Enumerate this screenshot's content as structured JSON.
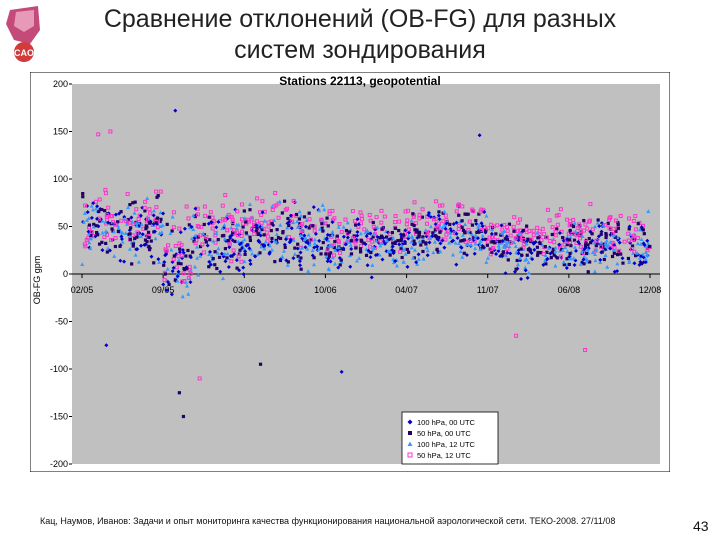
{
  "slide": {
    "title_line1": "Сравнение отклонений (OB-FG) для разных",
    "title_line2": "систем зондирования",
    "logo_text": "CAO",
    "footer": "Кац, Наумов, Иванов: Задачи и опыт мониторинга качества функционирования национальной аэрологической сети. ТЕКО-2008. 27/11/08",
    "page_number": "43"
  },
  "colors": {
    "plot_bg": "#c0c0c0",
    "series": [
      "#0000cc",
      "#220066",
      "#3399ff",
      "#ff33cc"
    ]
  },
  "chart_data": {
    "type": "scatter",
    "title": "Stations 22113, geopotential",
    "ylabel": "OB-FG gpm",
    "xlabel": "",
    "ylim": [
      -200,
      200
    ],
    "yticks": [
      200,
      150,
      100,
      50,
      0,
      -50,
      -100,
      -150,
      -200
    ],
    "xticks": [
      "02/05",
      "09/05",
      "03/06",
      "10/06",
      "04/07",
      "11/07",
      "06/08",
      "12/08"
    ],
    "grid": false,
    "legend_position": "bottom-right",
    "series": [
      {
        "name": "100 hPa, 00 UTC",
        "marker": "diamond",
        "color": "#0000cc"
      },
      {
        "name": "50 hPa, 00 UTC",
        "marker": "square",
        "color": "#220066"
      },
      {
        "name": "100 hPa, 12 UTC",
        "marker": "triangle",
        "color": "#3399ff"
      },
      {
        "name": "50 hPa, 12 UTC",
        "marker": "circle",
        "color": "#ff33cc"
      }
    ],
    "segments": [
      {
        "from": 0.0,
        "to": 1.0,
        "mean": 45,
        "spread": 38
      },
      {
        "from": 1.0,
        "to": 1.35,
        "mean": 10,
        "spread": 55
      },
      {
        "from": 1.35,
        "to": 2.0,
        "mean": 30,
        "spread": 45
      },
      {
        "from": 2.0,
        "to": 3.0,
        "mean": 38,
        "spread": 38
      },
      {
        "from": 3.0,
        "to": 4.0,
        "mean": 30,
        "spread": 32
      },
      {
        "from": 4.0,
        "to": 5.0,
        "mean": 40,
        "spread": 32
      },
      {
        "from": 5.0,
        "to": 6.0,
        "mean": 25,
        "spread": 28
      },
      {
        "from": 6.0,
        "to": 7.0,
        "mean": 28,
        "spread": 35
      }
    ],
    "outliers": [
      {
        "x": 1.15,
        "y": 172,
        "series": 0
      },
      {
        "x": 4.9,
        "y": 146,
        "series": 0
      },
      {
        "x": 0.2,
        "y": 147,
        "series": 3
      },
      {
        "x": 0.35,
        "y": 150,
        "series": 3
      },
      {
        "x": 1.25,
        "y": -150,
        "series": 1
      },
      {
        "x": 1.2,
        "y": -125,
        "series": 1
      },
      {
        "x": 1.45,
        "y": -110,
        "series": 3
      },
      {
        "x": 2.2,
        "y": -95,
        "series": 1
      },
      {
        "x": 3.2,
        "y": -103,
        "series": 0
      },
      {
        "x": 6.2,
        "y": -80,
        "series": 3
      },
      {
        "x": 0.3,
        "y": -75,
        "series": 0
      },
      {
        "x": 5.35,
        "y": -65,
        "series": 3
      }
    ]
  }
}
